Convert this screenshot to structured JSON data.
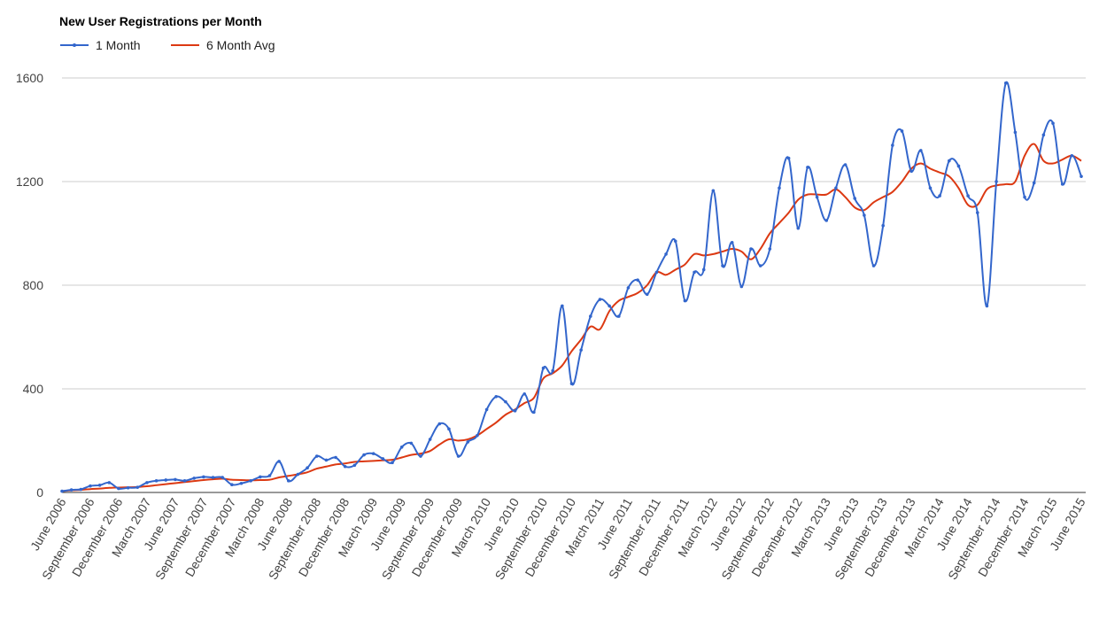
{
  "chart_data": {
    "type": "line",
    "title": "New User Registrations per Month",
    "xlabel": "",
    "ylabel": "",
    "ylim": [
      0,
      1600
    ],
    "yticks": [
      0,
      400,
      800,
      1200,
      1600
    ],
    "grid": true,
    "legend_position": "top-left",
    "x_labels": [
      "June 2006",
      "September 2006",
      "December 2006",
      "March 2007",
      "June 2007",
      "September 2007",
      "December 2007",
      "March 2008",
      "June 2008",
      "September 2008",
      "December 2008",
      "March 2009",
      "June 2009",
      "September 2009",
      "December 2009",
      "March 2010",
      "June 2010",
      "September 2010",
      "December 2010",
      "March 2011",
      "June 2011",
      "September 2011",
      "December 2011",
      "March 2012",
      "June 2012",
      "September 2012",
      "December 2012",
      "March 2013",
      "June 2013",
      "September 2013",
      "December 2013",
      "March 2014",
      "June 2014",
      "September 2014",
      "December 2014",
      "March 2015",
      "June 2015"
    ],
    "series": [
      {
        "name": "1 Month",
        "color": "#3366cc",
        "values": [
          5,
          10,
          12,
          25,
          28,
          38,
          15,
          18,
          20,
          38,
          45,
          48,
          50,
          45,
          55,
          60,
          58,
          58,
          30,
          35,
          45,
          60,
          65,
          120,
          45,
          70,
          95,
          140,
          125,
          135,
          100,
          105,
          145,
          150,
          130,
          115,
          175,
          190,
          140,
          205,
          265,
          245,
          140,
          195,
          220,
          320,
          370,
          350,
          315,
          380,
          310,
          480,
          470,
          720,
          420,
          550,
          680,
          745,
          720,
          680,
          790,
          820,
          765,
          850,
          920,
          970,
          740,
          850,
          860,
          1165,
          875,
          965,
          795,
          940,
          875,
          940,
          1175,
          1290,
          1020,
          1255,
          1140,
          1050,
          1175,
          1265,
          1135,
          1070,
          875,
          1030,
          1340,
          1395,
          1240,
          1320,
          1175,
          1145,
          1280,
          1260,
          1145,
          1080,
          720,
          1200,
          1580,
          1390,
          1140,
          1195,
          1380,
          1425,
          1190,
          1300,
          1220
        ]
      },
      {
        "name": "6 Month Avg",
        "color": "#dc3912",
        "values": [
          5,
          8,
          10,
          13,
          15,
          18,
          19,
          20,
          21,
          24,
          28,
          32,
          36,
          40,
          44,
          48,
          51,
          53,
          49,
          48,
          47,
          48,
          49,
          58,
          64,
          70,
          78,
          92,
          100,
          108,
          112,
          118,
          120,
          122,
          124,
          126,
          135,
          145,
          150,
          160,
          185,
          205,
          200,
          205,
          220,
          245,
          270,
          300,
          320,
          345,
          365,
          440,
          460,
          490,
          545,
          590,
          640,
          630,
          700,
          740,
          755,
          770,
          800,
          850,
          840,
          860,
          880,
          920,
          915,
          920,
          930,
          940,
          930,
          900,
          940,
          1000,
          1040,
          1080,
          1130,
          1150,
          1150,
          1150,
          1170,
          1140,
          1100,
          1090,
          1120,
          1140,
          1160,
          1200,
          1250,
          1270,
          1250,
          1235,
          1220,
          1175,
          1110,
          1110,
          1170,
          1185,
          1190,
          1200,
          1300,
          1345,
          1280,
          1270,
          1285,
          1300,
          1280
        ]
      }
    ]
  }
}
